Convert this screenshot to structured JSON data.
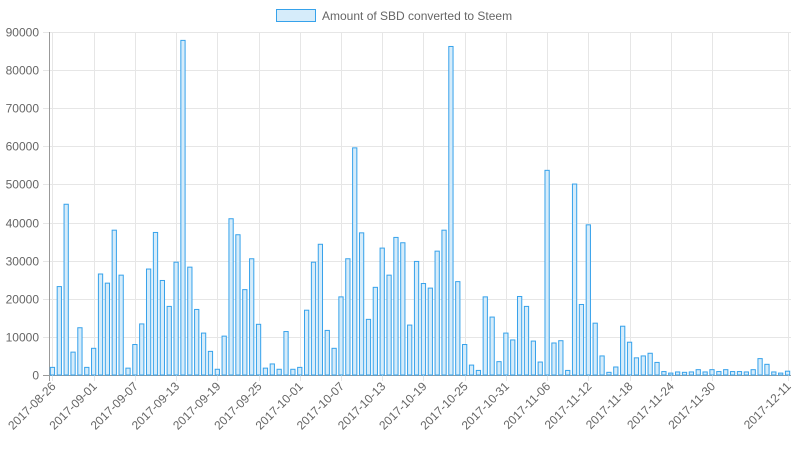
{
  "chart_data": {
    "type": "bar",
    "legend_position": "top",
    "grid": true,
    "colors": {
      "bar_fill": "#d6ecfa",
      "bar_stroke": "#36a2eb",
      "grid": "#e6e6e6",
      "axis": "#999999",
      "text": "#666666"
    },
    "series": [
      {
        "name": "Amount of SBD converted to Steem",
        "values": [
          2000,
          23200,
          44800,
          6000,
          12400,
          2000,
          7000,
          26500,
          24100,
          38000,
          26200,
          1800,
          8000,
          13400,
          27800,
          37400,
          24800,
          18000,
          29600,
          87800,
          28300,
          17200,
          11000,
          6200,
          1500,
          10200,
          41000,
          36800,
          22400,
          30500,
          13300,
          1800,
          2900,
          1500,
          11400,
          1500,
          2000,
          17000,
          29600,
          34300,
          11700,
          7000,
          20500,
          30500,
          59600,
          37300,
          14600,
          23000,
          33300,
          26200,
          36100,
          34700,
          13100,
          29800,
          24000,
          22800,
          32500,
          38000,
          86200,
          24500,
          8000,
          2600,
          1200,
          20500,
          15200,
          3500,
          11000,
          9200,
          20600,
          18000,
          8900,
          3400,
          53700,
          8400,
          9000,
          1200,
          50100,
          18500,
          39400,
          13600,
          5000,
          700,
          2100,
          12800,
          8600,
          4500,
          5000,
          5700,
          3300,
          900,
          500,
          800,
          700,
          800,
          1400,
          800,
          1400,
          900,
          1400,
          900,
          900,
          800,
          1400,
          4300,
          2800,
          800,
          500,
          1000
        ]
      }
    ],
    "x_start_date": "2017-08-26",
    "x_tick_labels": [
      "2017-08-26",
      "2017-09-01",
      "2017-09-07",
      "2017-09-13",
      "2017-09-19",
      "2017-09-25",
      "2017-10-01",
      "2017-10-07",
      "2017-10-13",
      "2017-10-19",
      "2017-10-25",
      "2017-10-31",
      "2017-11-06",
      "2017-11-12",
      "2017-11-18",
      "2017-11-24",
      "2017-11-30",
      "2017-12-11"
    ],
    "y_ticks": [
      "0",
      "10000",
      "20000",
      "30000",
      "40000",
      "50000",
      "60000",
      "70000",
      "80000",
      "90000"
    ],
    "ylim": [
      0,
      90000
    ]
  }
}
